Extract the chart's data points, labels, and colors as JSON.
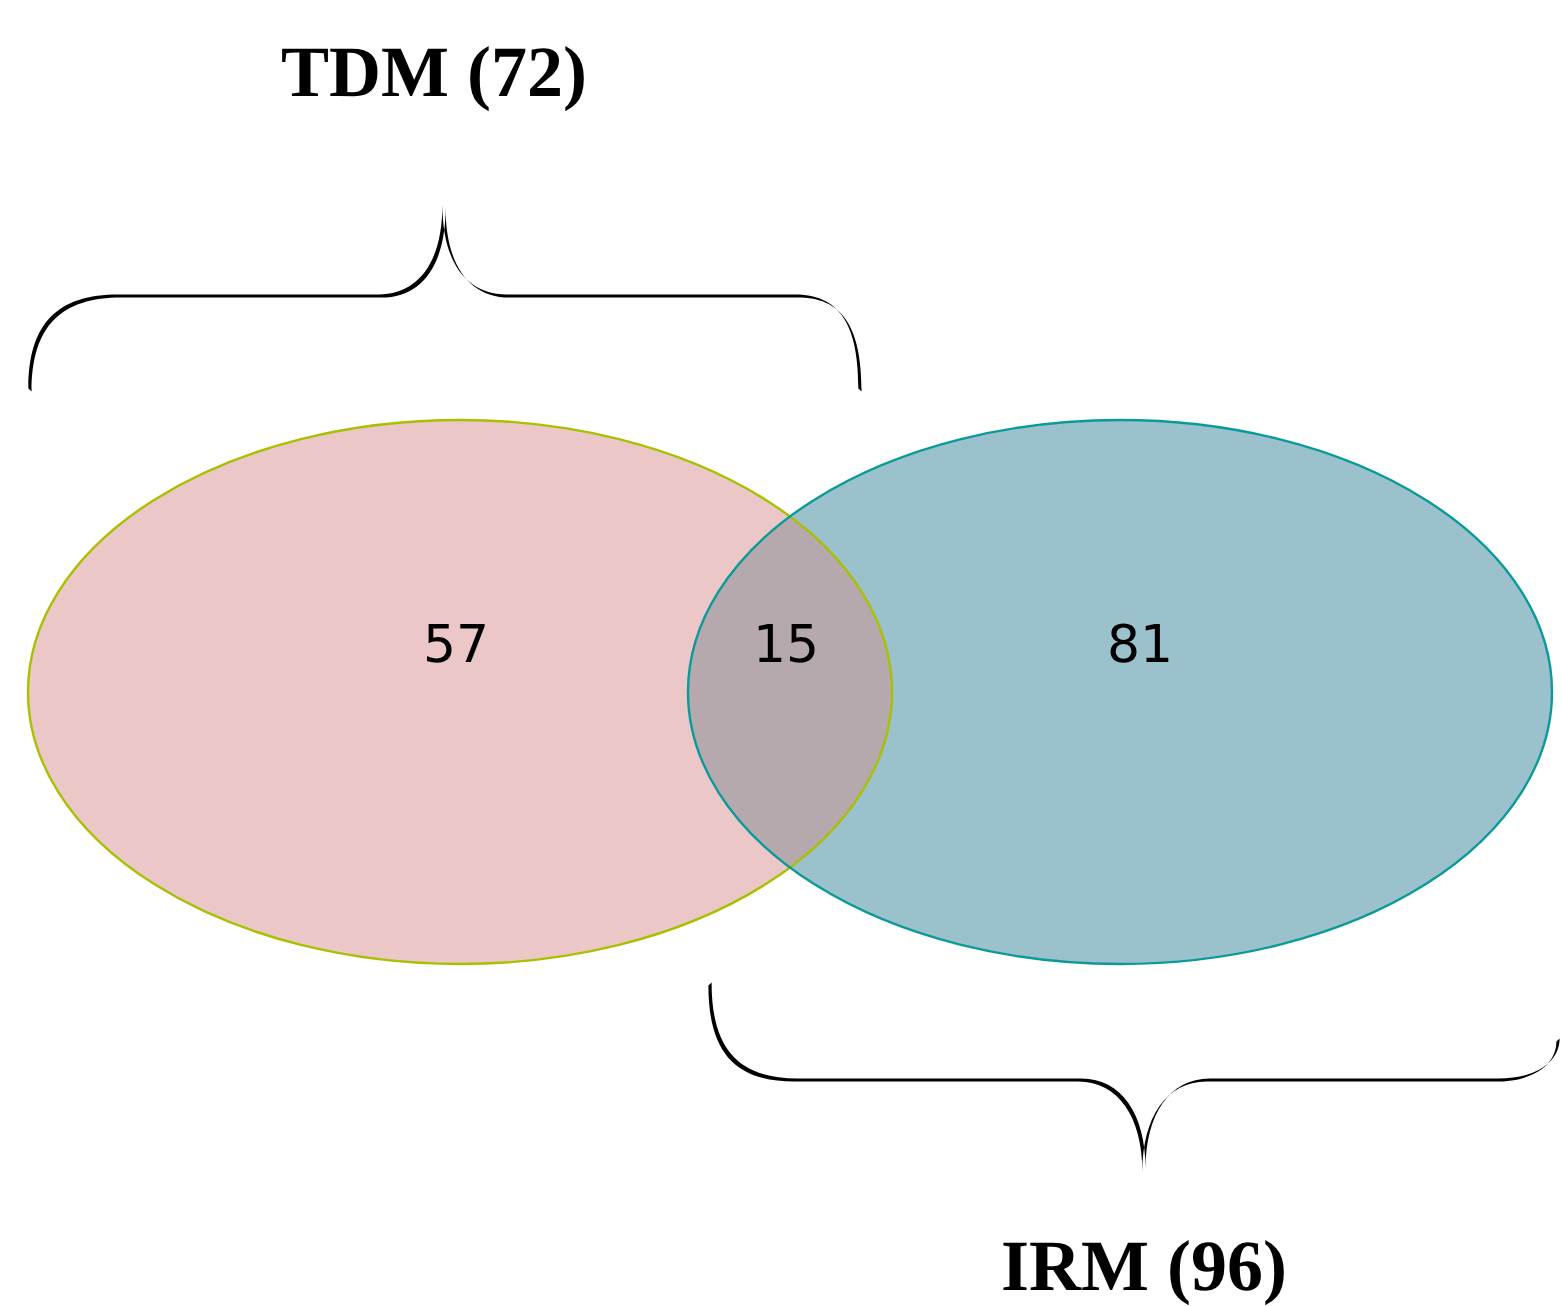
{
  "chart_data": {
    "type": "other",
    "annotations": [
      "TDM (72)",
      "IRM (96)"
    ],
    "values": [
      57,
      15,
      81
    ],
    "colors": [
      "#ebc7c7",
      "#b5a9ae",
      "#9bc1cd"
    ],
    "data_labels": true
  }
}
